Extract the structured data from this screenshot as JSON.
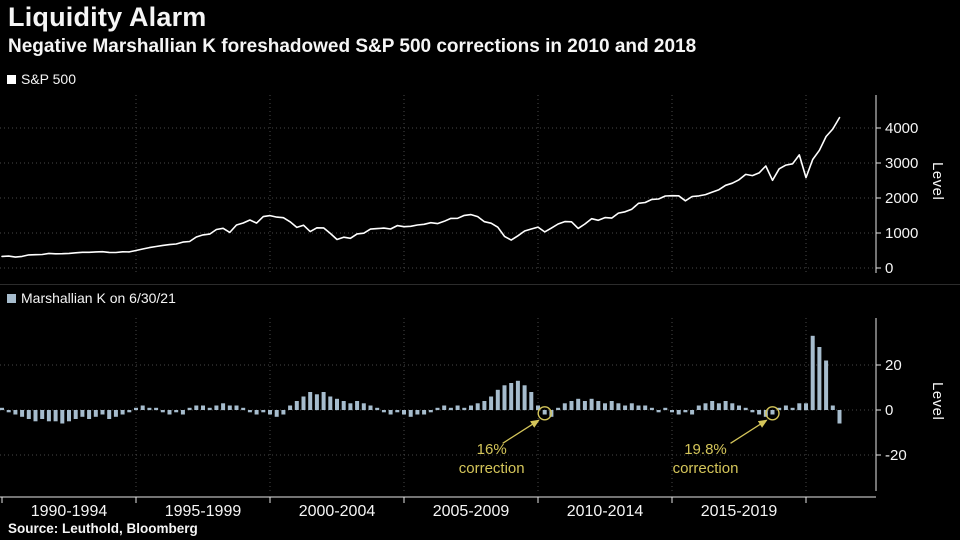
{
  "header": {
    "title": "Liquidity Alarm",
    "subtitle": "Negative Marshallian K foreshadowed S&P 500 corrections in 2010 and 2018"
  },
  "source": "Source: Leuthold, Bloomberg",
  "colors": {
    "background": "#000000",
    "text": "#f5f5f5",
    "line": "#ffffff",
    "bar": "#a6bccd",
    "grid": "#474747",
    "axis": "#e6e6e6",
    "annotation": "#d4c55a"
  },
  "x_axis": {
    "labels": [
      "1990-1994",
      "1995-1999",
      "2000-2004",
      "2005-2009",
      "2010-2014",
      "2015-2019"
    ],
    "gridline_years": [
      1995,
      2000,
      2005,
      2010,
      2015,
      2020
    ],
    "tick_years": [
      1990,
      1995,
      2000,
      2005,
      2010,
      2015,
      2020
    ]
  },
  "chart_data": [
    {
      "type": "line",
      "title": "S&P 500",
      "legend": "S&P 500",
      "ylabel": "Level",
      "yticks": [
        0,
        1000,
        2000,
        3000,
        4000
      ],
      "ylim": [
        0,
        4900
      ],
      "x_start_year": 1990,
      "x_step_years": 0.25,
      "x_unit": "quarter",
      "values": [
        330,
        340,
        310,
        330,
        375,
        380,
        387,
        417,
        405,
        408,
        418,
        435,
        450,
        448,
        459,
        466,
        446,
        444,
        462,
        459,
        500,
        544,
        584,
        615,
        645,
        670,
        687,
        740,
        757,
        885,
        947,
        970,
        1100,
        1133,
        1017,
        1229,
        1286,
        1372,
        1282,
        1469,
        1498,
        1454,
        1436,
        1320,
        1160,
        1224,
        1040,
        1148,
        1147,
        989,
        815,
        879,
        848,
        974,
        995,
        1111,
        1126,
        1140,
        1114,
        1211,
        1180,
        1191,
        1228,
        1248,
        1294,
        1270,
        1335,
        1418,
        1420,
        1503,
        1526,
        1468,
        1322,
        1280,
        1166,
        903,
        797,
        919,
        1057,
        1115,
        1169,
        1030,
        1141,
        1257,
        1325,
        1320,
        1131,
        1257,
        1408,
        1362,
        1440,
        1426,
        1569,
        1606,
        1681,
        1848,
        1872,
        1960,
        1972,
        2058,
        2067,
        2063,
        1920,
        2043,
        2059,
        2098,
        2168,
        2238,
        2362,
        2423,
        2519,
        2673,
        2640,
        2718,
        2913,
        2506,
        2834,
        2941,
        2976,
        3230,
        2584,
        3100,
        3363,
        3756,
        3972,
        4297
      ]
    },
    {
      "type": "bar",
      "title": "Marshallian K on 6/30/21",
      "legend": "Marshallian K on 6/30/21",
      "ylabel": "Level",
      "yticks": [
        -20,
        0,
        20
      ],
      "ylim": [
        -32,
        40
      ],
      "x_start_year": 1990,
      "x_step_years": 0.25,
      "x_unit": "quarter",
      "values": [
        1,
        -1,
        -2,
        -3,
        -4,
        -5,
        -4,
        -5,
        -5,
        -6,
        -5,
        -4,
        -3,
        -4,
        -3,
        -2,
        -4,
        -3,
        -2,
        -1,
        1,
        2,
        1,
        1,
        -1,
        -2,
        -1,
        -2,
        1,
        2,
        2,
        1,
        2,
        3,
        2,
        2,
        1,
        -1,
        -2,
        -1,
        -2,
        -3,
        -2,
        2,
        4,
        6,
        8,
        7,
        8,
        6,
        5,
        4,
        3,
        4,
        3,
        2,
        1,
        -1,
        -2,
        -1,
        -2,
        -3,
        -2,
        -2,
        -1,
        1,
        2,
        1,
        2,
        1,
        2,
        3,
        4,
        6,
        9,
        11,
        12,
        13,
        11,
        8,
        2,
        -2,
        -3,
        1,
        3,
        4,
        5,
        4,
        5,
        4,
        3,
        4,
        3,
        2,
        3,
        2,
        2,
        1,
        -1,
        1,
        -1,
        -2,
        -1,
        -2,
        2,
        3,
        4,
        3,
        4,
        3,
        2,
        1,
        -1,
        -2,
        -3,
        -2,
        1,
        2,
        1,
        3,
        3,
        33,
        28,
        22,
        2,
        -6
      ],
      "annotations": [
        {
          "line1": "16%",
          "line2": "correction",
          "target_year": 2010.25,
          "target_value": -2
        },
        {
          "line1": "19.8%",
          "line2": "correction",
          "target_year": 2018.75,
          "target_value": -2
        }
      ]
    }
  ]
}
